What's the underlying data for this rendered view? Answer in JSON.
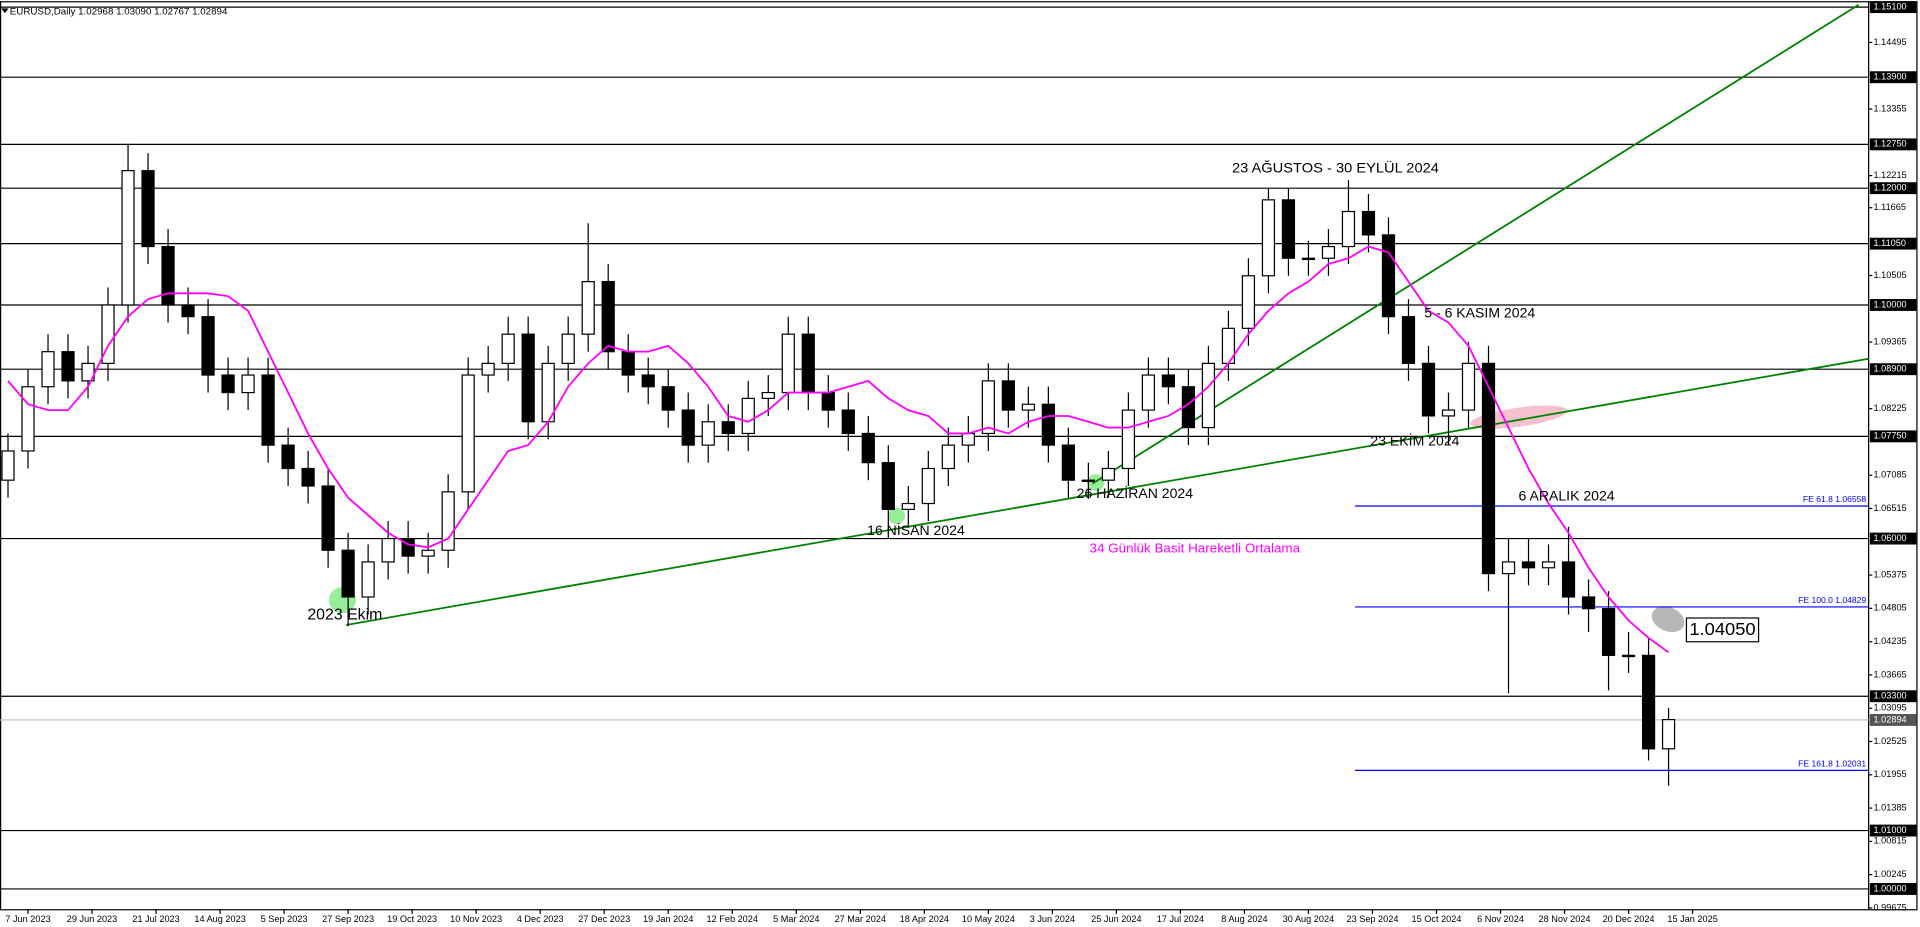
{
  "chart_data": {
    "type": "candlestick",
    "title": "EURUSD,Daily  1.02968 1.03090 1.02767 1.02894",
    "xlim": [
      -7,
      460
    ],
    "ylim": [
      0.99654,
      1.151
    ],
    "xticks": [
      {
        "value": 0,
        "label": "7 Jun 2023"
      },
      {
        "value": 16,
        "label": "29 Jun 2023"
      },
      {
        "value": 32,
        "label": "21 Jul 2023"
      },
      {
        "value": 48,
        "label": "14 Aug 2023"
      },
      {
        "value": 64,
        "label": "5 Sep 2023"
      },
      {
        "value": 80,
        "label": "27 Sep 2023"
      },
      {
        "value": 96,
        "label": "19 Oct 2023"
      },
      {
        "value": 112,
        "label": "10 Nov 2023"
      },
      {
        "value": 128,
        "label": "4 Dec 2023"
      },
      {
        "value": 144,
        "label": "27 Dec 2023"
      },
      {
        "value": 160,
        "label": "19 Jan 2024"
      },
      {
        "value": 176,
        "label": "12 Feb 2024"
      },
      {
        "value": 192,
        "label": "5 Mar 2024"
      },
      {
        "value": 208,
        "label": "27 Mar 2024"
      },
      {
        "value": 224,
        "label": "18 Apr 2024"
      },
      {
        "value": 240,
        "label": "10 May 2024"
      },
      {
        "value": 256,
        "label": "3 Jun 2024"
      },
      {
        "value": 272,
        "label": "25 Jun 2024"
      },
      {
        "value": 288,
        "label": "17 Jul 2024"
      },
      {
        "value": 304,
        "label": "8 Aug 2024"
      },
      {
        "value": 320,
        "label": "30 Aug 2024"
      },
      {
        "value": 336,
        "label": "23 Sep 2024"
      },
      {
        "value": 352,
        "label": "15 Oct 2024"
      },
      {
        "value": 368,
        "label": "6 Nov 2024"
      },
      {
        "value": 384,
        "label": "28 Nov 2024"
      },
      {
        "value": 400,
        "label": "20 Dec 2024"
      },
      {
        "value": 416,
        "label": "15 Jan 2025"
      }
    ],
    "yticks": [
      {
        "value": 1.14495,
        "label": "1.14495"
      },
      {
        "value": 1.13355,
        "label": "1.13355"
      },
      {
        "value": 1.12215,
        "label": "1.12215"
      },
      {
        "value": 1.11665,
        "label": "1.11665"
      },
      {
        "value": 1.10505,
        "label": "1.10505"
      },
      {
        "value": 1.09365,
        "label": "1.09365"
      },
      {
        "value": 1.08225,
        "label": "1.08225"
      },
      {
        "value": 1.07085,
        "label": "1.07085"
      },
      {
        "value": 1.06515,
        "label": "1.06515"
      },
      {
        "value": 1.05375,
        "label": "1.05375"
      },
      {
        "value": 1.04805,
        "label": "1.04805"
      },
      {
        "value": 1.04235,
        "label": "1.04235"
      },
      {
        "value": 1.03665,
        "label": "1.03665"
      },
      {
        "value": 1.03095,
        "label": "1.03095"
      },
      {
        "value": 1.02525,
        "label": "1.02525"
      },
      {
        "value": 1.01955,
        "label": "1.01955"
      },
      {
        "value": 1.01385,
        "label": "1.01385"
      },
      {
        "value": 1.00815,
        "label": "1.00815"
      },
      {
        "value": 1.00245,
        "label": "1.00245"
      },
      {
        "value": 0.99675,
        "label": "0.99675"
      }
    ],
    "levels": [
      {
        "value": 1.151,
        "label": "1.15100"
      },
      {
        "value": 1.139,
        "label": "1.13900"
      },
      {
        "value": 1.1275,
        "label": "1.12750"
      },
      {
        "value": 1.12,
        "label": "1.12000"
      },
      {
        "value": 1.1105,
        "label": "1.11050"
      },
      {
        "value": 1.1,
        "label": "1.10000"
      },
      {
        "value": 1.089,
        "label": "1.08900"
      },
      {
        "value": 1.0775,
        "label": "1.07750"
      },
      {
        "value": 1.06,
        "label": "1.06000"
      },
      {
        "value": 1.033,
        "label": "1.03300"
      },
      {
        "value": 1.01,
        "label": "1.01000"
      },
      {
        "value": 1.0,
        "label": "1.00000"
      }
    ],
    "current_price": {
      "value": 1.02894,
      "label": "1.02894"
    },
    "fib_levels": [
      {
        "value": 1.06558,
        "label": "FE 61.8 1.06558"
      },
      {
        "value": 1.04829,
        "label": "FE 100.0 1.04829"
      },
      {
        "value": 1.02031,
        "label": "FE 161.8 1.02031"
      }
    ],
    "fib_color": "#0000ff",
    "trendlines": [
      {
        "x": [
          79.5,
          460
        ],
        "y": [
          1.0452,
          1.0908
        ]
      },
      {
        "x": [
          266,
          457.5
        ],
        "y": [
          1.0694,
          1.1514
        ]
      }
    ],
    "trend_color": "#008000",
    "candle_color": "#000000",
    "x": [
      -5,
      0,
      5,
      10,
      15,
      20,
      25,
      30,
      35,
      40,
      45,
      50,
      55,
      60,
      65,
      70,
      75,
      80,
      85,
      90,
      95,
      100,
      105,
      110,
      115,
      120,
      125,
      130,
      135,
      140,
      145,
      150,
      155,
      160,
      165,
      170,
      175,
      180,
      185,
      190,
      195,
      200,
      205,
      210,
      215,
      220,
      225,
      230,
      235,
      240,
      245,
      250,
      255,
      260,
      265,
      270,
      275,
      280,
      285,
      290,
      295,
      300,
      305,
      310,
      315,
      320,
      325,
      330,
      335,
      340,
      345,
      350,
      355,
      360,
      365,
      370,
      375,
      380,
      385,
      390,
      395,
      400,
      405,
      410
    ],
    "open": [
      1.07,
      1.075,
      1.086,
      1.092,
      1.087,
      1.09,
      1.1,
      1.123,
      1.11,
      1.1,
      1.098,
      1.088,
      1.085,
      1.088,
      1.076,
      1.072,
      1.069,
      1.058,
      1.05,
      1.056,
      1.06,
      1.057,
      1.058,
      1.068,
      1.088,
      1.09,
      1.095,
      1.08,
      1.09,
      1.095,
      1.104,
      1.092,
      1.088,
      1.086,
      1.082,
      1.076,
      1.08,
      1.078,
      1.084,
      1.085,
      1.095,
      1.085,
      1.082,
      1.078,
      1.073,
      1.065,
      1.066,
      1.072,
      1.076,
      1.078,
      1.087,
      1.082,
      1.083,
      1.076,
      1.07,
      1.07,
      1.072,
      1.082,
      1.088,
      1.086,
      1.079,
      1.09,
      1.096,
      1.105,
      1.118,
      1.108,
      1.108,
      1.11,
      1.116,
      1.112,
      1.098,
      1.09,
      1.081,
      1.082,
      1.09,
      1.054,
      1.056,
      1.055,
      1.056,
      1.05,
      1.048,
      1.04,
      1.04,
      1.024
    ],
    "high": [
      1.078,
      1.089,
      1.095,
      1.095,
      1.093,
      1.103,
      1.1276,
      1.126,
      1.113,
      1.103,
      1.101,
      1.091,
      1.091,
      1.091,
      1.079,
      1.075,
      1.072,
      1.061,
      1.059,
      1.063,
      1.063,
      1.061,
      1.071,
      1.091,
      1.093,
      1.098,
      1.098,
      1.093,
      1.098,
      1.114,
      1.107,
      1.095,
      1.091,
      1.089,
      1.085,
      1.083,
      1.083,
      1.087,
      1.088,
      1.098,
      1.098,
      1.088,
      1.085,
      1.081,
      1.076,
      1.069,
      1.075,
      1.079,
      1.081,
      1.09,
      1.09,
      1.086,
      1.086,
      1.079,
      1.073,
      1.075,
      1.085,
      1.091,
      1.091,
      1.089,
      1.093,
      1.099,
      1.108,
      1.12,
      1.12,
      1.111,
      1.113,
      1.1214,
      1.119,
      1.115,
      1.101,
      1.093,
      1.085,
      1.0937,
      1.093,
      1.06,
      1.06,
      1.059,
      1.062,
      1.053,
      1.051,
      1.044,
      1.043,
      1.031
    ],
    "low": [
      1.067,
      1.072,
      1.083,
      1.084,
      1.084,
      1.087,
      1.097,
      1.107,
      1.097,
      1.095,
      1.085,
      1.082,
      1.082,
      1.073,
      1.069,
      1.066,
      1.055,
      1.045,
      1.047,
      1.053,
      1.054,
      1.054,
      1.055,
      1.065,
      1.085,
      1.087,
      1.077,
      1.077,
      1.087,
      1.092,
      1.089,
      1.085,
      1.083,
      1.079,
      1.073,
      1.073,
      1.075,
      1.075,
      1.081,
      1.082,
      1.082,
      1.079,
      1.075,
      1.07,
      1.0601,
      1.062,
      1.063,
      1.069,
      1.073,
      1.075,
      1.079,
      1.079,
      1.073,
      1.067,
      1.0668,
      1.067,
      1.069,
      1.079,
      1.083,
      1.076,
      1.076,
      1.087,
      1.093,
      1.102,
      1.105,
      1.105,
      1.105,
      1.107,
      1.109,
      1.095,
      1.087,
      1.078,
      1.0761,
      1.079,
      1.051,
      1.0335,
      1.052,
      1.052,
      1.047,
      1.044,
      1.034,
      1.037,
      1.022,
      1.0177
    ],
    "close": [
      1.075,
      1.086,
      1.092,
      1.087,
      1.09,
      1.1,
      1.123,
      1.11,
      1.1,
      1.098,
      1.088,
      1.085,
      1.088,
      1.076,
      1.072,
      1.069,
      1.058,
      1.05,
      1.056,
      1.06,
      1.057,
      1.058,
      1.068,
      1.088,
      1.09,
      1.095,
      1.08,
      1.09,
      1.095,
      1.104,
      1.092,
      1.088,
      1.086,
      1.082,
      1.076,
      1.08,
      1.078,
      1.084,
      1.085,
      1.095,
      1.085,
      1.082,
      1.078,
      1.073,
      1.065,
      1.066,
      1.072,
      1.076,
      1.078,
      1.087,
      1.082,
      1.083,
      1.076,
      1.07,
      1.07,
      1.072,
      1.082,
      1.088,
      1.086,
      1.079,
      1.09,
      1.096,
      1.105,
      1.118,
      1.108,
      1.108,
      1.11,
      1.116,
      1.112,
      1.098,
      1.09,
      1.081,
      1.082,
      1.09,
      1.054,
      1.056,
      1.055,
      1.056,
      1.05,
      1.048,
      1.04,
      1.04,
      1.024,
      1.029
    ],
    "series": [
      {
        "name": "34 Günlük Basit Hareketli Ortalama",
        "color": "#ff00ff",
        "values": [
          1.087,
          1.083,
          1.082,
          1.082,
          1.086,
          1.093,
          1.098,
          1.101,
          1.102,
          1.102,
          1.102,
          1.1015,
          1.099,
          1.092,
          1.085,
          1.078,
          1.072,
          1.067,
          1.064,
          1.061,
          1.059,
          1.0585,
          1.06,
          1.065,
          1.07,
          1.075,
          1.076,
          1.08,
          1.086,
          1.09,
          1.093,
          1.092,
          1.092,
          1.093,
          1.09,
          1.086,
          1.081,
          1.08,
          1.082,
          1.085,
          1.085,
          1.085,
          1.086,
          1.087,
          1.084,
          1.082,
          1.081,
          1.078,
          1.078,
          1.079,
          1.078,
          1.08,
          1.081,
          1.081,
          1.08,
          1.079,
          1.079,
          1.08,
          1.081,
          1.083,
          1.086,
          1.09,
          1.095,
          1.099,
          1.102,
          1.104,
          1.107,
          1.108,
          1.11,
          1.109,
          1.104,
          1.099,
          1.097,
          1.093,
          1.086,
          1.079,
          1.072,
          1.066,
          1.061,
          1.055,
          1.05,
          1.046,
          1.043,
          1.0405
        ]
      }
    ],
    "annotations": [
      "23 AĞUSTOS - 30 EYLÜL 2024",
      "5 - 6 KASIM 2024",
      "23 EKİM 2024",
      "6 ARALIK 2024",
      "26 HAZİRAN 2024",
      "16 NİSAN 2024",
      "2023 Ekim"
    ],
    "ma_label": {
      "value": 1.0405,
      "label": "1.04050"
    }
  }
}
